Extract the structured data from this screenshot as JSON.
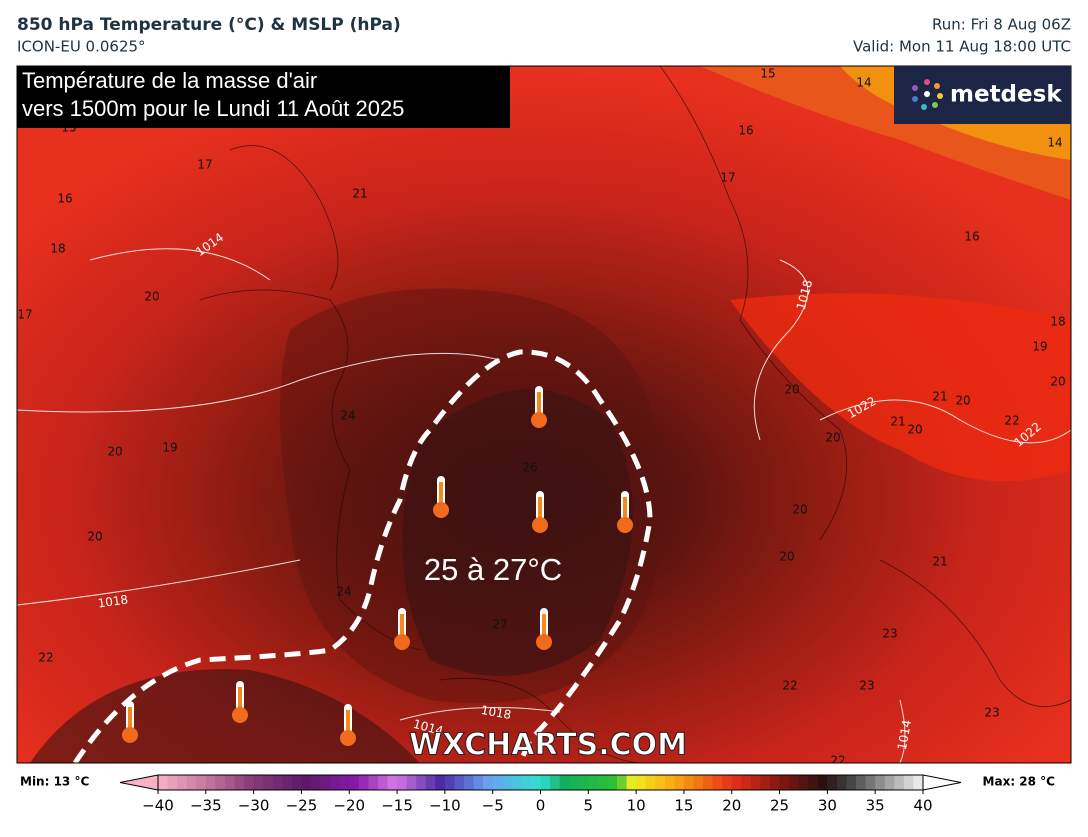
{
  "header": {
    "title": "850 hPa Temperature (°C) & MSLP (hPa)",
    "model": "ICON-EU 0.0625°",
    "run": "Run: Fri 8 Aug 06Z",
    "valid": "Valid: Mon 11 Aug 18:00 UTC"
  },
  "overlay": {
    "title_line1": "Température de la masse d'air",
    "title_line2": "vers 1500m pour le Lundi 11 Août 2025",
    "zone_label": "25 à 27°C",
    "watermark": "WXCHARTS.COM",
    "logo": "metdesk"
  },
  "map": {
    "isotherm_labels": [
      15,
      14,
      15,
      16,
      17,
      17,
      14,
      16,
      21,
      16,
      18,
      20,
      17,
      18,
      19,
      20,
      20,
      24,
      21,
      20,
      22,
      20,
      19,
      20,
      21,
      20,
      26,
      20,
      20,
      20,
      21,
      24,
      27,
      23,
      22,
      22,
      23,
      23,
      22
    ],
    "isobar_labels": [
      1014,
      1018,
      1022,
      1022,
      1018,
      1018,
      1014,
      1014
    ]
  },
  "colorbar": {
    "min_label": "Min: 13 °C",
    "max_label": "Max: 28 °C",
    "lim": [
      -40,
      40
    ],
    "ticks": [
      {
        "value": -40,
        "label": "−40"
      },
      {
        "value": -35,
        "label": "−35"
      },
      {
        "value": -30,
        "label": "−30"
      },
      {
        "value": -25,
        "label": "−25"
      },
      {
        "value": -20,
        "label": "−20"
      },
      {
        "value": -15,
        "label": "−15"
      },
      {
        "value": -10,
        "label": "−10"
      },
      {
        "value": -5,
        "label": "−5"
      },
      0,
      5,
      10,
      15,
      20,
      25,
      30,
      35,
      40
    ]
  }
}
